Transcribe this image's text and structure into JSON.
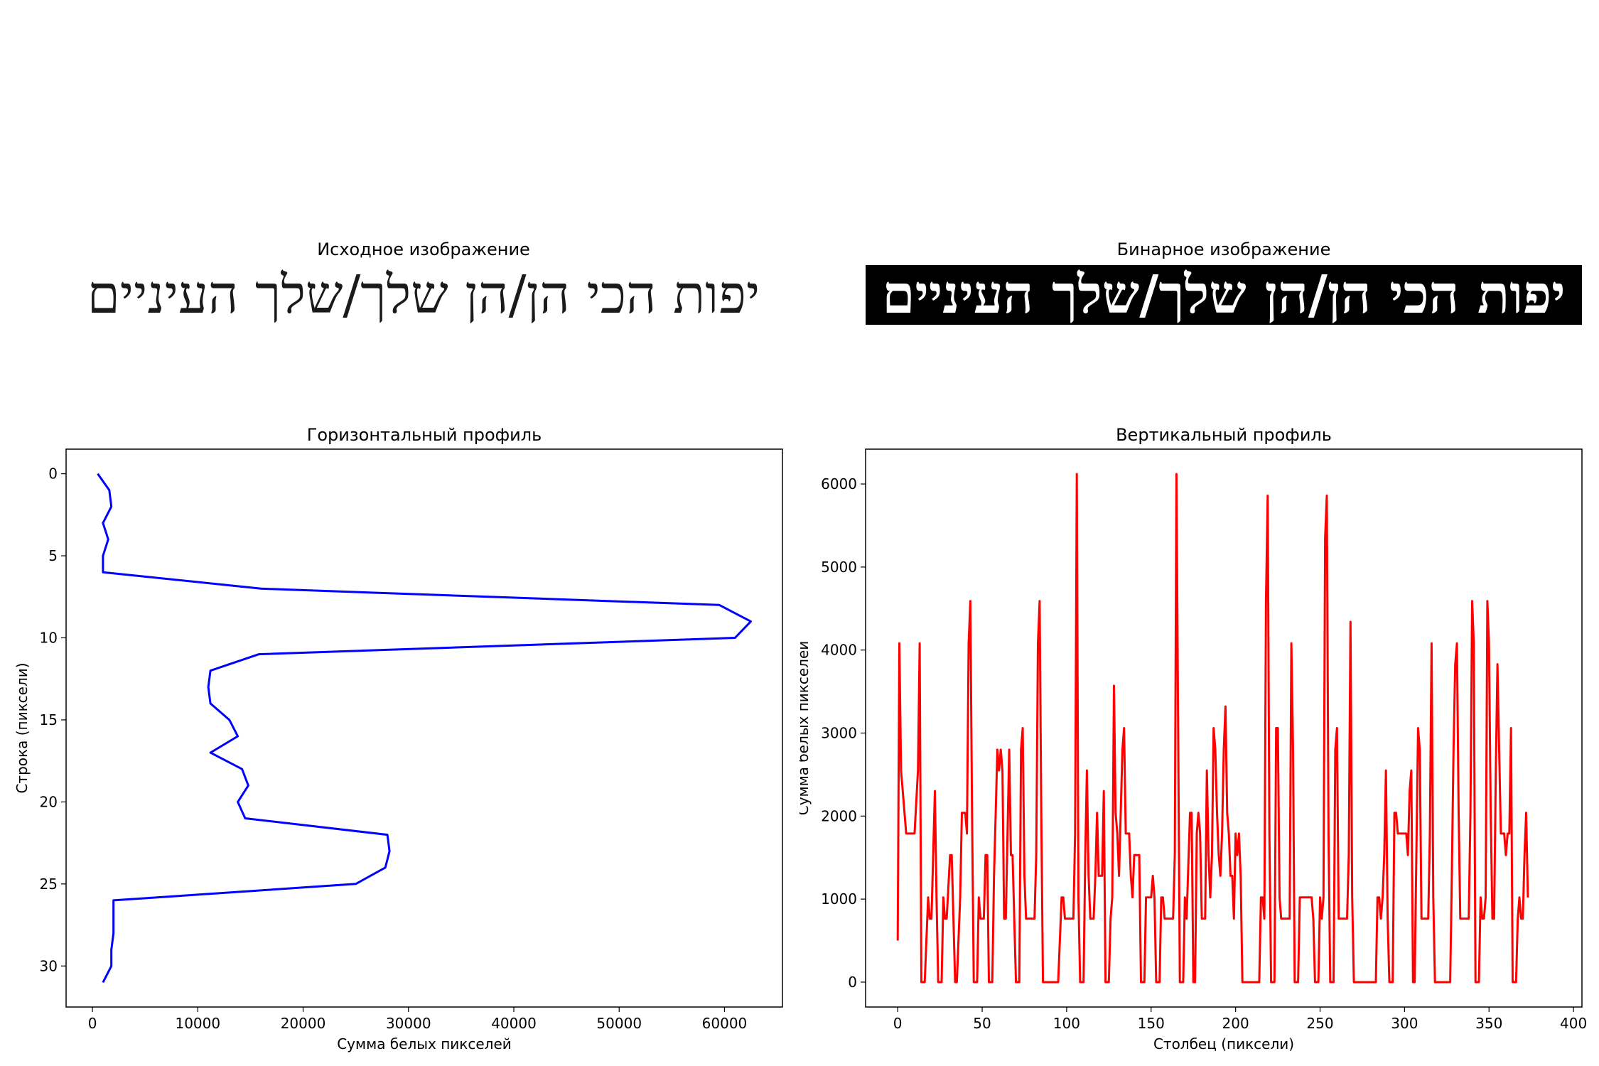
{
  "images": {
    "original_title": "Исходное изображение",
    "binary_title": "Бинарное изображение",
    "hebrew_text": "יפות הכי הן/הן שלך/שלך העיניים"
  },
  "chart_data": [
    {
      "type": "line",
      "title": "Горизонтальный профиль",
      "xlabel": "Сумма белых пикселей",
      "ylabel": "Строка (пиксели)",
      "xlim": [
        -2500,
        65500
      ],
      "ylim": [
        32.5,
        -1.5
      ],
      "xticks": [
        0,
        10000,
        20000,
        30000,
        40000,
        50000,
        60000
      ],
      "yticks": [
        0,
        5,
        10,
        15,
        20,
        25,
        30
      ],
      "color": "#0000ff",
      "x": [
        500,
        1600,
        1800,
        1000,
        1500,
        1000,
        1000,
        16000,
        59500,
        62500,
        61000,
        15800,
        11200,
        11000,
        11200,
        13000,
        13800,
        11200,
        14200,
        14800,
        13800,
        14500,
        28000,
        28200,
        27800,
        25000,
        2000,
        2000,
        2000,
        1800,
        1800,
        1000
      ],
      "y": [
        0,
        1,
        2,
        3,
        4,
        5,
        6,
        7,
        8,
        9,
        10,
        11,
        12,
        13,
        14,
        15,
        16,
        17,
        18,
        19,
        20,
        21,
        22,
        23,
        24,
        25,
        26,
        27,
        28,
        29,
        30,
        31
      ]
    },
    {
      "type": "line",
      "title": "Вертикальный профиль",
      "xlabel": "Столбец (пиксели)",
      "ylabel": "Сумма белых пикселей",
      "xlim": [
        -19,
        405
      ],
      "ylim": [
        -300,
        6420
      ],
      "xticks": [
        0,
        50,
        100,
        150,
        200,
        250,
        300,
        350,
        400
      ],
      "yticks": [
        0,
        1000,
        2000,
        3000,
        4000,
        5000,
        6000
      ],
      "color": "#ff0000",
      "points": [
        [
          0,
          500
        ],
        [
          1,
          4080
        ],
        [
          2,
          2550
        ],
        [
          3,
          2300
        ],
        [
          5,
          1790
        ],
        [
          8,
          1790
        ],
        [
          10,
          1790
        ],
        [
          12,
          2550
        ],
        [
          13,
          4080
        ],
        [
          14,
          0
        ],
        [
          16,
          0
        ],
        [
          18,
          1020
        ],
        [
          19,
          765
        ],
        [
          20,
          765
        ],
        [
          22,
          2300
        ],
        [
          23,
          1020
        ],
        [
          24,
          0
        ],
        [
          26,
          0
        ],
        [
          27,
          1020
        ],
        [
          28,
          765
        ],
        [
          29,
          765
        ],
        [
          31,
          1530
        ],
        [
          32,
          1530
        ],
        [
          33,
          765
        ],
        [
          34,
          0
        ],
        [
          35,
          0
        ],
        [
          37,
          1020
        ],
        [
          38,
          2040
        ],
        [
          40,
          2040
        ],
        [
          41,
          1790
        ],
        [
          42,
          4080
        ],
        [
          43,
          4590
        ],
        [
          44,
          2040
        ],
        [
          45,
          0
        ],
        [
          47,
          0
        ],
        [
          48,
          1020
        ],
        [
          49,
          765
        ],
        [
          51,
          765
        ],
        [
          52,
          1530
        ],
        [
          53,
          1530
        ],
        [
          54,
          0
        ],
        [
          56,
          0
        ],
        [
          57,
          1280
        ],
        [
          58,
          2040
        ],
        [
          59,
          2800
        ],
        [
          60,
          2550
        ],
        [
          61,
          2800
        ],
        [
          62,
          2550
        ],
        [
          63,
          765
        ],
        [
          64,
          765
        ],
        [
          66,
          2800
        ],
        [
          67,
          1530
        ],
        [
          68,
          1530
        ],
        [
          69,
          765
        ],
        [
          70,
          0
        ],
        [
          72,
          0
        ],
        [
          73,
          2800
        ],
        [
          74,
          3060
        ],
        [
          75,
          1280
        ],
        [
          76,
          765
        ],
        [
          78,
          765
        ],
        [
          81,
          765
        ],
        [
          82,
          1530
        ],
        [
          83,
          4080
        ],
        [
          84,
          4590
        ],
        [
          85,
          2040
        ],
        [
          86,
          0
        ],
        [
          88,
          0
        ],
        [
          94,
          0
        ],
        [
          95,
          0
        ],
        [
          97,
          1020
        ],
        [
          98,
          1020
        ],
        [
          99,
          765
        ],
        [
          101,
          765
        ],
        [
          104,
          765
        ],
        [
          105,
          1790
        ],
        [
          106,
          6120
        ],
        [
          107,
          1020
        ],
        [
          108,
          0
        ],
        [
          110,
          0
        ],
        [
          111,
          1530
        ],
        [
          112,
          2550
        ],
        [
          113,
          1280
        ],
        [
          114,
          765
        ],
        [
          116,
          765
        ],
        [
          117,
          1280
        ],
        [
          118,
          2040
        ],
        [
          119,
          1280
        ],
        [
          121,
          1280
        ],
        [
          122,
          2300
        ],
        [
          123,
          0
        ],
        [
          125,
          0
        ],
        [
          126,
          765
        ],
        [
          127,
          1020
        ],
        [
          128,
          3570
        ],
        [
          129,
          2040
        ],
        [
          130,
          1790
        ],
        [
          131,
          1280
        ],
        [
          132,
          2040
        ],
        [
          133,
          2800
        ],
        [
          134,
          3060
        ],
        [
          135,
          1790
        ],
        [
          137,
          1790
        ],
        [
          138,
          1280
        ],
        [
          139,
          1020
        ],
        [
          140,
          1530
        ],
        [
          143,
          1530
        ],
        [
          144,
          0
        ],
        [
          146,
          0
        ],
        [
          147,
          1020
        ],
        [
          150,
          1020
        ],
        [
          151,
          1280
        ],
        [
          152,
          1020
        ],
        [
          153,
          0
        ],
        [
          155,
          0
        ],
        [
          156,
          1020
        ],
        [
          157,
          1020
        ],
        [
          158,
          765
        ],
        [
          161,
          765
        ],
        [
          163,
          765
        ],
        [
          164,
          1530
        ],
        [
          165,
          6120
        ],
        [
          166,
          3060
        ],
        [
          167,
          0
        ],
        [
          169,
          0
        ],
        [
          170,
          1020
        ],
        [
          171,
          765
        ],
        [
          173,
          2040
        ],
        [
          174,
          2040
        ],
        [
          175,
          0
        ],
        [
          176,
          0
        ],
        [
          177,
          1790
        ],
        [
          178,
          2040
        ],
        [
          179,
          1790
        ],
        [
          180,
          765
        ],
        [
          182,
          765
        ],
        [
          183,
          2550
        ],
        [
          184,
          1530
        ],
        [
          185,
          1020
        ],
        [
          186,
          1530
        ],
        [
          187,
          3060
        ],
        [
          188,
          2800
        ],
        [
          189,
          2040
        ],
        [
          190,
          1530
        ],
        [
          191,
          1280
        ],
        [
          192,
          1790
        ],
        [
          193,
          2800
        ],
        [
          194,
          3320
        ],
        [
          195,
          2040
        ],
        [
          196,
          1790
        ],
        [
          197,
          1280
        ],
        [
          198,
          1280
        ],
        [
          199,
          765
        ],
        [
          200,
          1790
        ],
        [
          201,
          1530
        ],
        [
          202,
          1790
        ],
        [
          203,
          1280
        ],
        [
          204,
          0
        ],
        [
          206,
          0
        ],
        [
          213,
          0
        ],
        [
          214,
          0
        ],
        [
          215,
          1020
        ],
        [
          216,
          1020
        ],
        [
          217,
          765
        ],
        [
          218,
          4590
        ],
        [
          219,
          5860
        ],
        [
          220,
          1790
        ],
        [
          221,
          0
        ],
        [
          223,
          0
        ],
        [
          224,
          3060
        ],
        [
          225,
          3060
        ],
        [
          226,
          1020
        ],
        [
          227,
          765
        ],
        [
          229,
          765
        ],
        [
          230,
          765
        ],
        [
          232,
          765
        ],
        [
          233,
          4080
        ],
        [
          234,
          2800
        ],
        [
          235,
          0
        ],
        [
          237,
          0
        ],
        [
          238,
          1020
        ],
        [
          240,
          1020
        ],
        [
          243,
          1020
        ],
        [
          245,
          1020
        ],
        [
          246,
          765
        ],
        [
          247,
          0
        ],
        [
          249,
          0
        ],
        [
          250,
          1020
        ],
        [
          251,
          765
        ],
        [
          252,
          1020
        ],
        [
          253,
          5350
        ],
        [
          254,
          5860
        ],
        [
          255,
          1790
        ],
        [
          256,
          0
        ],
        [
          258,
          0
        ],
        [
          259,
          2800
        ],
        [
          260,
          3060
        ],
        [
          261,
          765
        ],
        [
          263,
          765
        ],
        [
          266,
          765
        ],
        [
          267,
          1530
        ],
        [
          268,
          4340
        ],
        [
          269,
          1020
        ],
        [
          270,
          0
        ],
        [
          272,
          0
        ],
        [
          283,
          0
        ],
        [
          284,
          1020
        ],
        [
          285,
          1020
        ],
        [
          286,
          765
        ],
        [
          287,
          1020
        ],
        [
          288,
          1530
        ],
        [
          289,
          2550
        ],
        [
          290,
          765
        ],
        [
          291,
          0
        ],
        [
          293,
          0
        ],
        [
          294,
          2040
        ],
        [
          295,
          2040
        ],
        [
          296,
          1790
        ],
        [
          297,
          1790
        ],
        [
          301,
          1790
        ],
        [
          302,
          1530
        ],
        [
          303,
          2300
        ],
        [
          304,
          2550
        ],
        [
          305,
          0
        ],
        [
          306,
          0
        ],
        [
          308,
          3060
        ],
        [
          309,
          2800
        ],
        [
          310,
          765
        ],
        [
          312,
          765
        ],
        [
          314,
          765
        ],
        [
          315,
          1790
        ],
        [
          316,
          4080
        ],
        [
          317,
          1020
        ],
        [
          318,
          0
        ],
        [
          320,
          0
        ],
        [
          324,
          0
        ],
        [
          325,
          0
        ],
        [
          327,
          0
        ],
        [
          328,
          1280
        ],
        [
          329,
          2800
        ],
        [
          330,
          3830
        ],
        [
          331,
          4080
        ],
        [
          332,
          2040
        ],
        [
          333,
          765
        ],
        [
          335,
          765
        ],
        [
          336,
          765
        ],
        [
          338,
          765
        ],
        [
          339,
          2040
        ],
        [
          340,
          4590
        ],
        [
          341,
          4080
        ],
        [
          342,
          0
        ],
        [
          344,
          0
        ],
        [
          345,
          1020
        ],
        [
          346,
          765
        ],
        [
          347,
          765
        ],
        [
          348,
          1020
        ],
        [
          349,
          4590
        ],
        [
          350,
          4080
        ],
        [
          351,
          2040
        ],
        [
          352,
          765
        ],
        [
          353,
          765
        ],
        [
          354,
          2550
        ],
        [
          355,
          3830
        ],
        [
          356,
          2800
        ],
        [
          357,
          1790
        ],
        [
          359,
          1790
        ],
        [
          360,
          1530
        ],
        [
          361,
          1790
        ],
        [
          362,
          1790
        ],
        [
          363,
          3060
        ],
        [
          364,
          0
        ],
        [
          366,
          0
        ],
        [
          367,
          765
        ],
        [
          368,
          1020
        ],
        [
          369,
          765
        ],
        [
          370,
          765
        ],
        [
          371,
          1530
        ],
        [
          372,
          2040
        ],
        [
          373,
          1020
        ]
      ]
    }
  ]
}
